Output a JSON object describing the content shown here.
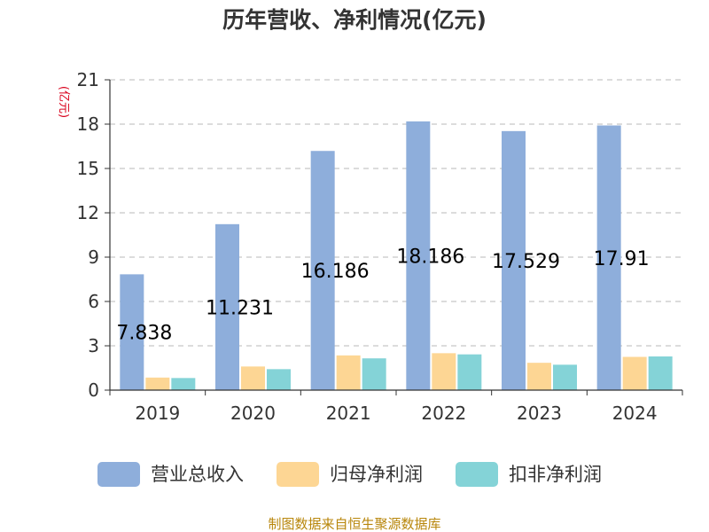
{
  "chart_data": {
    "type": "bar",
    "title": "历年营收、净利情况(亿元)",
    "ylabel": "(亿元)",
    "categories": [
      "2019",
      "2020",
      "2021",
      "2022",
      "2023",
      "2024"
    ],
    "ylim": [
      0,
      21
    ],
    "yticks": [
      "0",
      "3",
      "6",
      "9",
      "12",
      "15",
      "18",
      "21"
    ],
    "grid": true,
    "legend_position": "bottom",
    "series": [
      {
        "name": "营业总收入",
        "color": "#8eaedb",
        "values": [
          7.838,
          11.231,
          16.186,
          18.186,
          17.529,
          17.91
        ],
        "labels": [
          "7.838",
          "11.231",
          "16.186",
          "18.186",
          "17.529",
          "17.91"
        ]
      },
      {
        "name": "归母净利润",
        "color": "#fdd694",
        "values": [
          0.85,
          1.6,
          2.35,
          2.5,
          1.85,
          2.25
        ]
      },
      {
        "name": "扣非净利润",
        "color": "#84d3d7",
        "values": [
          0.82,
          1.42,
          2.15,
          2.42,
          1.72,
          2.28
        ]
      }
    ],
    "source": "制图数据来自恒生聚源数据库"
  }
}
